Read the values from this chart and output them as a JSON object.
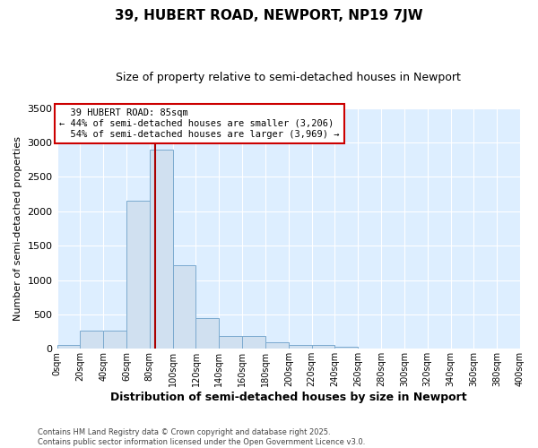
{
  "title": "39, HUBERT ROAD, NEWPORT, NP19 7JW",
  "subtitle": "Size of property relative to semi-detached houses in Newport",
  "xlabel": "Distribution of semi-detached houses by size in Newport",
  "ylabel": "Number of semi-detached properties",
  "footer_line1": "Contains HM Land Registry data © Crown copyright and database right 2025.",
  "footer_line2": "Contains public sector information licensed under the Open Government Licence v3.0.",
  "bar_edges": [
    0,
    20,
    40,
    60,
    80,
    100,
    120,
    140,
    160,
    180,
    200,
    220,
    240,
    260,
    280,
    300,
    320,
    340,
    360,
    380,
    400
  ],
  "bar_heights": [
    50,
    270,
    270,
    2150,
    2900,
    1220,
    450,
    185,
    185,
    95,
    50,
    50,
    30,
    0,
    0,
    0,
    0,
    0,
    0,
    0
  ],
  "bar_color": "#d0e0f0",
  "bar_edge_color": "#7baacf",
  "property_size": 85,
  "property_label": "39 HUBERT ROAD: 85sqm",
  "pct_smaller": 44,
  "pct_smaller_count": "3,206",
  "pct_larger": 54,
  "pct_larger_count": "3,969",
  "vline_color": "#aa0000",
  "annotation_box_color": "#cc0000",
  "ylim": [
    0,
    3500
  ],
  "yticks": [
    0,
    500,
    1000,
    1500,
    2000,
    2500,
    3000,
    3500
  ],
  "fig_bg_color": "#ffffff",
  "plot_bg_color": "#ddeeff",
  "grid_color": "#ffffff",
  "title_fontsize": 11,
  "subtitle_fontsize": 9
}
